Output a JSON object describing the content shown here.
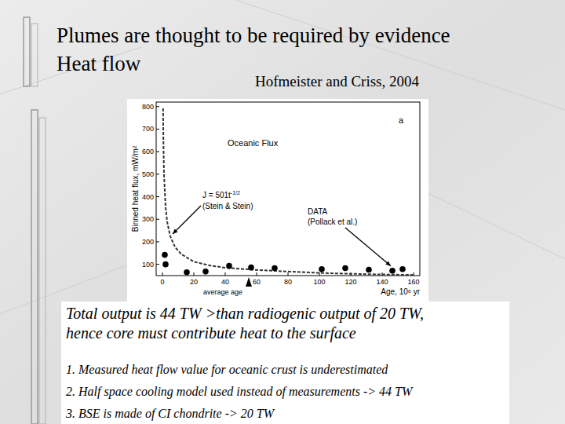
{
  "slide": {
    "title_lines": [
      "Plumes are thought to be required by evidence",
      "Heat flow"
    ],
    "citation": "Hofmeister and Criss, 2004",
    "summary_lines": [
      "Total output is 44 TW >than radiogenic output of 20 TW,",
      "hence core must contribute heat to the surface"
    ],
    "points": [
      "1. Measured heat flow value for oceanic crust is underestimated",
      "2. Half space cooling model used instead of measurements -> 44 TW",
      "3. BSE is made of CI chondrite -> 20 TW"
    ]
  },
  "chart_data": {
    "type": "line",
    "title": "Oceanic Flux",
    "panel_label": "a",
    "x_label": "Age, 10⁶ yr",
    "y_label": "Binned heat flux, mW/m²",
    "xlim": [
      -4,
      164
    ],
    "ylim": [
      50,
      820
    ],
    "xticks": [
      0,
      20,
      40,
      60,
      80,
      100,
      120,
      140,
      160
    ],
    "yticks": [
      100,
      200,
      300,
      400,
      500,
      600,
      700,
      800
    ],
    "grid": false,
    "series": [
      {
        "name": "(Stein & Stein)",
        "label": "J = 501t",
        "label_superscript": "-1/2",
        "type": "line",
        "line_style": "dashed",
        "color": "#333333",
        "x": [
          0.4,
          0.6,
          1,
          2,
          3,
          5,
          8,
          12,
          20,
          30,
          40,
          60,
          80,
          100,
          120,
          140,
          160
        ],
        "values": [
          792,
          647,
          501,
          354,
          289,
          224,
          177,
          145,
          112,
          95,
          85,
          75,
          68,
          62,
          58,
          55,
          53
        ]
      },
      {
        "name": "(Pollack et al.)",
        "label": "DATA",
        "type": "scatter",
        "marker": "circle",
        "color": "#000000",
        "x": [
          1.5,
          2,
          15.5,
          27.5,
          42.5,
          56.5,
          71.5,
          101.5,
          116.5,
          131.5,
          146.5,
          153
        ],
        "values": [
          142,
          100,
          65,
          68,
          93,
          86,
          83,
          79,
          83,
          76,
          72,
          79
        ]
      }
    ],
    "annotations": [
      {
        "text": "average age",
        "x": 55
      }
    ]
  }
}
